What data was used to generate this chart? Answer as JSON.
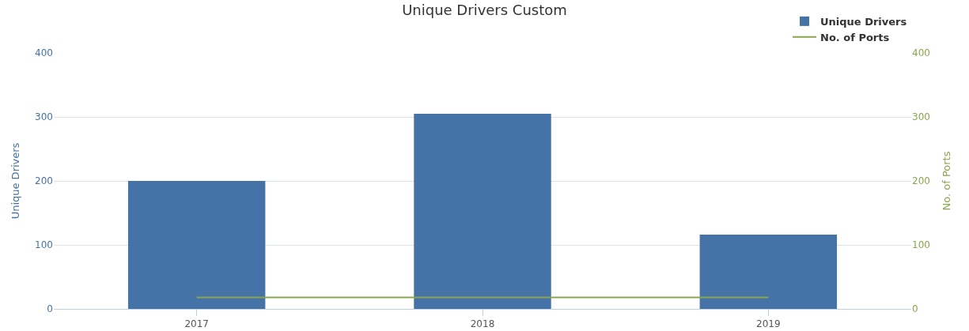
{
  "chart_data": {
    "type": "bar",
    "title": "Unique Drivers Custom",
    "ylabel": "Unique Drivers",
    "y2label": "No. of Ports",
    "categories": [
      "2017",
      "2018",
      "2019"
    ],
    "series": [
      {
        "name": "Unique Drivers",
        "color": "#4572a7",
        "values": [
          200,
          305,
          116
        ]
      },
      {
        "name": "No. of Ports",
        "type": "line",
        "axis": "y2",
        "color": "#89a54e",
        "values": [
          18,
          18,
          18
        ]
      }
    ],
    "ylim": [
      0,
      400
    ],
    "yticks": [
      0,
      100,
      200,
      300,
      400
    ],
    "y2lim": [
      0,
      400
    ],
    "y2ticks": [
      0,
      100,
      200,
      300,
      400
    ],
    "grid": "y",
    "legend": "top right",
    "marker": "none"
  }
}
